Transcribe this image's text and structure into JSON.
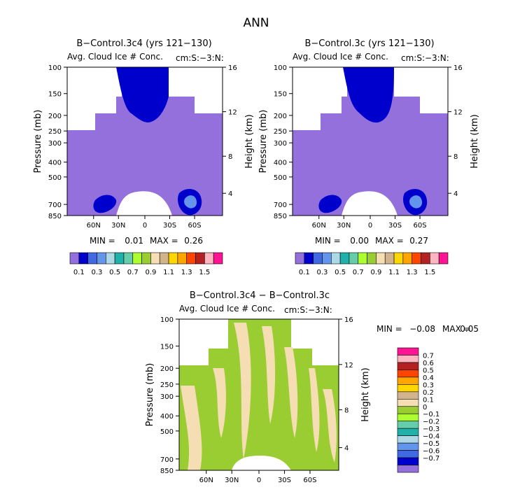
{
  "figure_title": "ANN",
  "colors": {
    "lavender": "#9370DB",
    "navy": "#0000CD",
    "light_blue": "#6495ED",
    "pale_green": "#9ACD32",
    "tan": "#F5DEB3",
    "white": "#FFFFFF"
  },
  "chart_data": [
    {
      "type": "contour",
      "id": "panel1",
      "title": "B−Control.3c4 (yrs 121−130)",
      "subtitle": "Avg. Cloud Ice # Conc.",
      "units": "cm:S:−3:N:",
      "ylabel": "Pressure (mb)",
      "ylabel_right": "Height (km)",
      "yticks": [
        "100",
        "150",
        "200",
        "250",
        "300",
        "400",
        "500",
        "700",
        "850"
      ],
      "yticks_right": [
        "16",
        "12",
        "8",
        "4"
      ],
      "xticks": [
        "60N",
        "30N",
        "0",
        "30S",
        "60S"
      ],
      "min_label": "MIN =",
      "min_value": "0.01",
      "max_label": "MAX =",
      "max_value": "0.26",
      "colorbar_labels": [
        "0.1",
        "0.3",
        "0.5",
        "0.7",
        "0.9",
        "1.1",
        "1.3",
        "1.5"
      ],
      "colorbar_colors": [
        "#9370DB",
        "#0000CD",
        "#4169E1",
        "#6495ED",
        "#ADD8E6",
        "#20B2AA",
        "#66CDAA",
        "#ADFF2F",
        "#9ACD32",
        "#F5DEB3",
        "#D2B48C",
        "#FFD700",
        "#FFA500",
        "#FF4500",
        "#B22222",
        "#FFB6C1",
        "#FF1493"
      ]
    },
    {
      "type": "contour",
      "id": "panel2",
      "title": "B−Control.3c (yrs 121−130)",
      "subtitle": "Avg. Cloud Ice # Conc.",
      "units": "cm:S:−3:N:",
      "ylabel": "Pressure (mb)",
      "ylabel_right": "Height (km)",
      "yticks": [
        "100",
        "150",
        "200",
        "250",
        "300",
        "400",
        "500",
        "700",
        "850"
      ],
      "yticks_right": [
        "16",
        "12",
        "8",
        "4"
      ],
      "xticks": [
        "60N",
        "30N",
        "0",
        "30S",
        "60S"
      ],
      "min_label": "MIN =",
      "min_value": "0.00",
      "max_label": "MAX =",
      "max_value": "0.27",
      "colorbar_labels": [
        "0.1",
        "0.3",
        "0.5",
        "0.7",
        "0.9",
        "1.1",
        "1.3",
        "1.5"
      ],
      "colorbar_colors": [
        "#9370DB",
        "#0000CD",
        "#4169E1",
        "#6495ED",
        "#ADD8E6",
        "#20B2AA",
        "#66CDAA",
        "#ADFF2F",
        "#9ACD32",
        "#F5DEB3",
        "#D2B48C",
        "#FFD700",
        "#FFA500",
        "#FF4500",
        "#B22222",
        "#FFB6C1",
        "#FF1493"
      ]
    },
    {
      "type": "contour",
      "id": "panel3",
      "title": "B−Control.3c4 − B−Control.3c",
      "subtitle": "Avg. Cloud Ice # Conc.",
      "units": "cm:S:−3:N:",
      "ylabel": "Pressure (mb)",
      "ylabel_right": "Height (km)",
      "yticks": [
        "100",
        "150",
        "200",
        "250",
        "300",
        "400",
        "500",
        "700",
        "850"
      ],
      "yticks_right": [
        "16",
        "12",
        "8",
        "4"
      ],
      "xticks": [
        "60N",
        "30N",
        "0",
        "30S",
        "60S"
      ],
      "min_label": "MIN =",
      "min_value": "−0.08",
      "max_label": "MAX =",
      "max_value": "0.05",
      "colorbar_labels": [
        "0.7",
        "0.6",
        "0.5",
        "0.4",
        "0.3",
        "0.2",
        "0.1",
        "0",
        "−0.1",
        "−0.2",
        "−0.3",
        "−0.4",
        "−0.5",
        "−0.6",
        "−0.7"
      ],
      "colorbar_colors": [
        "#FF1493",
        "#FFB6C1",
        "#B22222",
        "#FF4500",
        "#FFA500",
        "#FFD700",
        "#D2B48C",
        "#F5DEB3",
        "#9ACD32",
        "#ADFF2F",
        "#66CDAA",
        "#20B2AA",
        "#ADD8E6",
        "#6495ED",
        "#4169E1",
        "#0000CD",
        "#9370DB"
      ]
    }
  ]
}
